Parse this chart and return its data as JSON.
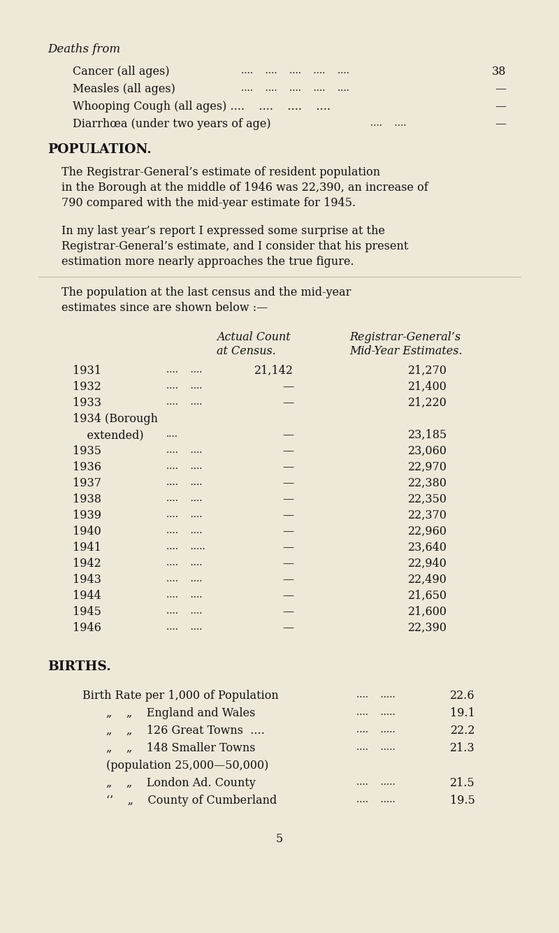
{
  "bg_color": "#ede8d8",
  "text_color": "#111111",
  "page_number": "5",
  "deaths_title": "Deaths from",
  "deaths_rows": [
    {
      "label": "Cancer (all ages)",
      "dots": "....    ....    ....    ....    ....",
      "value": "38"
    },
    {
      "label": "Measles (all ages)",
      "dots": "....    ....    ....    ....    ....",
      "value": "—"
    },
    {
      "label": "Whooping Cough (all ages) ....    ....    ....    ....",
      "dots2": "",
      "value": "—"
    },
    {
      "label": "Diarrhœa (under two years of age)",
      "dots": "....    ....",
      "value": "—"
    }
  ],
  "population_heading": "POPULATION.",
  "para1_lines": [
    "The Registrar-General’s estimate of resident population",
    "in the Borough at the middle of 1946 was 22,390, an increase of",
    "790 compared with the mid-year estimate for 1945."
  ],
  "para2_lines": [
    "In my last year’s report I expressed some surprise at the",
    "Registrar-General’s estimate, and I consider that his present",
    "estimation more nearly approaches the true figure."
  ],
  "para3_lines": [
    "The population at the last census and the mid-year",
    "estimates since are shown below :—"
  ],
  "col1_header": [
    "Actual Count",
    "at Census."
  ],
  "col2_header": [
    "Registrar-General’s",
    "Mid-Year Estimates."
  ],
  "table_rows": [
    {
      "year": "1931",
      "dots": "....    ....",
      "census": "21,142",
      "mid_year": "21,270"
    },
    {
      "year": "1932",
      "dots": "....    ....",
      "census": "—",
      "mid_year": "21,400"
    },
    {
      "year": "1933",
      "dots": "....    ....",
      "census": "—",
      "mid_year": "21,220"
    },
    {
      "year": "1934 (Borough",
      "year2": "    extended)",
      "dots": "....",
      "census": "—",
      "mid_year": "23,185"
    },
    {
      "year": "1935",
      "dots": "....    ....",
      "census": "—",
      "mid_year": "23,060"
    },
    {
      "year": "1936",
      "dots": "....    ....",
      "census": "—",
      "mid_year": "22,970"
    },
    {
      "year": "1937",
      "dots": "....    ....",
      "census": "—",
      "mid_year": "22,380"
    },
    {
      "year": "1938",
      "dots": "....    ....",
      "census": "—",
      "mid_year": "22,350"
    },
    {
      "year": "1939",
      "dots": "....    ....",
      "census": "—",
      "mid_year": "22,370"
    },
    {
      "year": "1940",
      "dots": "....    ....",
      "census": "—",
      "mid_year": "22,960"
    },
    {
      "year": "1941",
      "dots": "....    .....",
      "census": "—",
      "mid_year": "23,640"
    },
    {
      "year": "1942",
      "dots": "....    ....",
      "census": "—",
      "mid_year": "22,940"
    },
    {
      "year": "1943",
      "dots": "....    ....",
      "census": "—",
      "mid_year": "22,490"
    },
    {
      "year": "1944",
      "dots": "....    ....",
      "census": "—",
      "mid_year": "21,650"
    },
    {
      "year": "1945",
      "dots": "....    ....",
      "census": "—",
      "mid_year": "21,600"
    },
    {
      "year": "1946",
      "dots": "....    ....",
      "census": "—",
      "mid_year": "22,390"
    }
  ],
  "births_heading": "BIRTHS.",
  "births_rows": [
    {
      "label": "Birth Rate per 1,000 of Population",
      "dots": "....    .....",
      "value": "22.6"
    },
    {
      "„_label": true,
      "label": "England and Wales",
      "dots": "....    .....",
      "value": "19.1"
    },
    {
      "„_label": true,
      "label": "126 Great Towns  ....",
      "dots": "....    .....",
      "value": "22.2"
    },
    {
      "„_label": true,
      "label": "148 Smaller Towns",
      "dots": "....    .....",
      "value": "21.3"
    },
    {
      "label": "(population 25,000—50,000)",
      "dots": "",
      "value": "",
      "indent": true
    },
    {
      "„_label": true,
      "label": "London Ad. County",
      "dots": "....    .....",
      "value": "21.5"
    },
    {
      "‘’_label": true,
      "label": "County of Cumberland",
      "dots": "....    .....",
      "value": "19.5"
    }
  ]
}
